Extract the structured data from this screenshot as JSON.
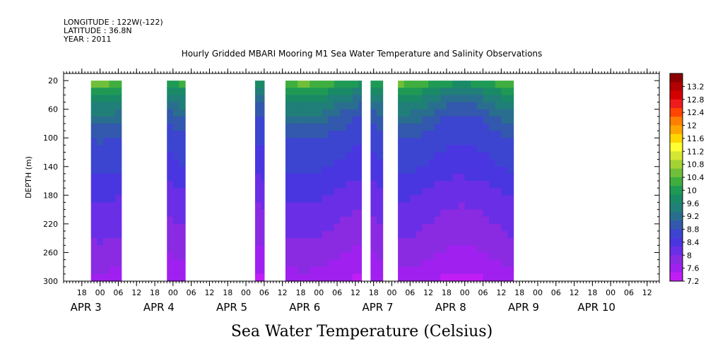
{
  "meta": {
    "longitude": "LONGITUDE : 122W(-122)",
    "latitude": "LATITUDE : 36.8N",
    "year": "YEAR : 2011"
  },
  "chart_data": {
    "type": "heatmap",
    "title": "Hourly Gridded MBARI Mooring M1 Sea Water Temperature and Salinity Observations",
    "variable_title": "Sea Water Temperature (Celsius)",
    "ylabel": "DEPTH (m)",
    "yticks": [
      20,
      60,
      100,
      140,
      180,
      220,
      260,
      300
    ],
    "ylim": [
      300,
      10
    ],
    "x_start": "2011-04-02T12:00",
    "x_end": "2011-04-10T16:00",
    "xticks_hours": [
      "18",
      "00",
      "06",
      "12",
      "18",
      "00",
      "06",
      "12",
      "18",
      "00",
      "06",
      "12",
      "18",
      "00",
      "06",
      "12",
      "18",
      "00",
      "06",
      "12",
      "18",
      "00",
      "06",
      "12",
      "18",
      "00",
      "06",
      "12",
      "18",
      "00",
      "06",
      "12"
    ],
    "day_labels": [
      {
        "label": "APR  3",
        "date": "2011-04-03"
      },
      {
        "label": "APR  4",
        "date": "2011-04-04"
      },
      {
        "label": "APR  5",
        "date": "2011-04-05"
      },
      {
        "label": "APR  6",
        "date": "2011-04-06"
      },
      {
        "label": "APR  7",
        "date": "2011-04-07"
      },
      {
        "label": "APR  8",
        "date": "2011-04-08"
      },
      {
        "label": "APR  9",
        "date": "2011-04-09"
      },
      {
        "label": "APR  10",
        "date": "2011-04-10"
      }
    ],
    "data_segments": [
      {
        "start": "2011-04-02T21:00",
        "end": "2011-04-03T07:00"
      },
      {
        "start": "2011-04-03T22:00",
        "end": "2011-04-04T04:00"
      },
      {
        "start": "2011-04-05T03:00",
        "end": "2011-04-05T06:00"
      },
      {
        "start": "2011-04-05T13:00",
        "end": "2011-04-06T14:00"
      },
      {
        "start": "2011-04-06T17:00",
        "end": "2011-04-06T21:00"
      },
      {
        "start": "2011-04-07T02:00",
        "end": "2011-04-08T16:00"
      }
    ],
    "temperature_profile": [
      {
        "depth": 20,
        "temp": 10.3
      },
      {
        "depth": 40,
        "temp": 9.6
      },
      {
        "depth": 60,
        "temp": 9.2
      },
      {
        "depth": 80,
        "temp": 8.9
      },
      {
        "depth": 100,
        "temp": 8.7
      },
      {
        "depth": 140,
        "temp": 8.5
      },
      {
        "depth": 180,
        "temp": 8.2
      },
      {
        "depth": 220,
        "temp": 8.0
      },
      {
        "depth": 260,
        "temp": 7.8
      },
      {
        "depth": 300,
        "temp": 7.5
      }
    ],
    "colorbar": {
      "levels": [
        "13.2",
        "12.8",
        "12.4",
        "12",
        "11.6",
        "11.2",
        "10.8",
        "10.4",
        "10",
        "9.6",
        "9.2",
        "8.8",
        "8.4",
        "8",
        "7.6",
        "7.2"
      ],
      "colors": [
        "#8b0000",
        "#b30000",
        "#d40000",
        "#ee1c1c",
        "#ff4500",
        "#ff7f00",
        "#ffa500",
        "#ffd700",
        "#ffff33",
        "#d4e832",
        "#a3d332",
        "#6fbf3a",
        "#3fae3f",
        "#1f9a55",
        "#1a8a66",
        "#207f78",
        "#2a6e8f",
        "#3259ad",
        "#3c45cf",
        "#4a36e0",
        "#6a2ee6",
        "#8a2be2",
        "#a020f0",
        "#c11ef5"
      ],
      "range": [
        7.2,
        13.6
      ]
    }
  }
}
